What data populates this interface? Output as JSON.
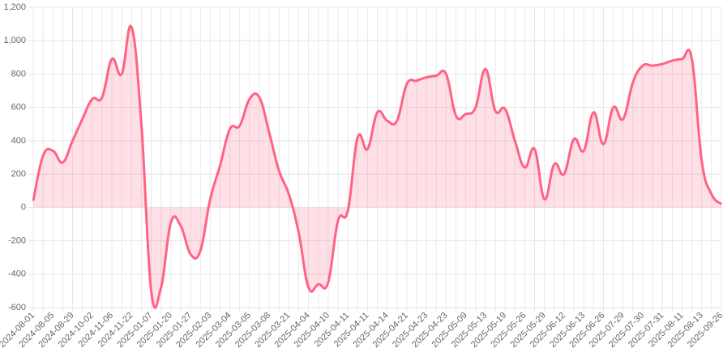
{
  "chart_data": {
    "type": "line",
    "categories": [
      "2024-08-01",
      null,
      "2024-08-05",
      null,
      "2024-08-29",
      null,
      "2024-10-02",
      null,
      "2024-11-06",
      null,
      "2024-11-22",
      null,
      "2025-01-07",
      null,
      "2025-01-20",
      null,
      "2025-01-27",
      null,
      "2025-02-03",
      null,
      "2025-03-04",
      null,
      "2025-03-05",
      null,
      "2025-03-08",
      null,
      "2025-03-21",
      null,
      "2025-04-04",
      null,
      "2025-04-10",
      null,
      "2025-04-11",
      null,
      "2025-04-11",
      null,
      "2025-04-14",
      null,
      "2025-04-21",
      null,
      "2025-04-23",
      null,
      "2025-04-23",
      null,
      "2025-05-09",
      null,
      "2025-05-13",
      null,
      "2025-05-19",
      null,
      "2025-05-26",
      null,
      "2025-05-29",
      null,
      "2025-06-12",
      null,
      "2025-06-13",
      null,
      "2025-06-26",
      null,
      "2025-07-29",
      null,
      "2025-07-30",
      null,
      "2025-07-31",
      null,
      "2025-08-11",
      null,
      "2025-08-13",
      null,
      "2025-09-26"
    ],
    "values": [
      40,
      310,
      340,
      270,
      400,
      530,
      650,
      660,
      890,
      800,
      1080,
      500,
      -500,
      -480,
      -90,
      -110,
      -280,
      -260,
      50,
      250,
      470,
      490,
      650,
      660,
      450,
      220,
      80,
      -150,
      -480,
      -460,
      -450,
      -80,
      -20,
      420,
      350,
      570,
      520,
      520,
      740,
      760,
      780,
      790,
      800,
      550,
      560,
      600,
      830,
      580,
      590,
      400,
      240,
      350,
      50,
      260,
      200,
      410,
      340,
      570,
      380,
      600,
      530,
      750,
      850,
      850,
      860,
      880,
      890,
      890,
      280,
      80,
      20
    ],
    "color": "#ff6384",
    "fill": "rgba(255,99,132,0.2)",
    "ylim": [
      -600,
      1200
    ],
    "yticks": [
      -600,
      -400,
      -200,
      0,
      200,
      400,
      600,
      800,
      {
        "value": 1000,
        "label": "1,000"
      },
      {
        "value": 1200,
        "label": "1,200"
      }
    ],
    "grid": true
  }
}
